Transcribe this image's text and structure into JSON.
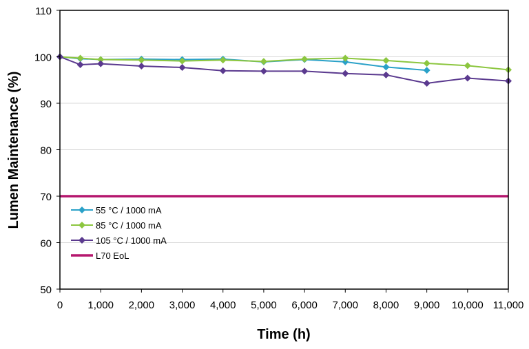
{
  "chart_data": {
    "type": "line",
    "title": "",
    "xlabel": "Time (h)",
    "ylabel": "Lumen Maintenance (%)",
    "xlim": [
      0,
      11000
    ],
    "ylim": [
      50,
      110
    ],
    "xticks": [
      0,
      1000,
      2000,
      3000,
      4000,
      5000,
      6000,
      7000,
      8000,
      9000,
      10000,
      11000
    ],
    "xtick_labels": [
      "0",
      "1,000",
      "2,000",
      "3,000",
      "4,000",
      "5,000",
      "6,000",
      "7,000",
      "8,000",
      "9,000",
      "10,000",
      "11,000"
    ],
    "yticks": [
      50,
      60,
      70,
      80,
      90,
      100,
      110
    ],
    "ytick_labels": [
      "50",
      "60",
      "70",
      "80",
      "90",
      "100",
      "110"
    ],
    "grid": "horizontal",
    "legend_position": "bottom-left",
    "series": [
      {
        "name": "55 °C / 1000 mA",
        "color": "#2aa1c8",
        "marker": "diamond",
        "x": [
          0,
          500,
          1000,
          2000,
          3000,
          4000,
          5000,
          6000,
          7000,
          8000,
          9000
        ],
        "y": [
          100,
          99.6,
          99.4,
          99.5,
          99.4,
          99.5,
          98.9,
          99.4,
          98.9,
          97.8,
          97.1
        ]
      },
      {
        "name": "85 °C / 1000 mA",
        "color": "#8cc63f",
        "marker": "diamond",
        "x": [
          0,
          500,
          1000,
          2000,
          3000,
          4000,
          5000,
          6000,
          7000,
          8000,
          9000,
          10000,
          11000
        ],
        "y": [
          100,
          99.7,
          99.4,
          99.3,
          99.1,
          99.3,
          99.0,
          99.5,
          99.7,
          99.2,
          98.6,
          98.1,
          97.2
        ]
      },
      {
        "name": "105 °C / 1000 mA",
        "color": "#5b3a8f",
        "marker": "diamond",
        "x": [
          0,
          500,
          1000,
          2000,
          3000,
          4000,
          5000,
          6000,
          7000,
          8000,
          9000,
          10000,
          11000
        ],
        "y": [
          100,
          98.3,
          98.5,
          98.0,
          97.7,
          97.0,
          96.9,
          96.9,
          96.4,
          96.1,
          94.3,
          95.4,
          94.8
        ]
      },
      {
        "name": "L70 EoL",
        "color": "#b5176e",
        "marker": "none",
        "x": [
          0,
          11000
        ],
        "y": [
          70,
          70
        ]
      }
    ]
  }
}
